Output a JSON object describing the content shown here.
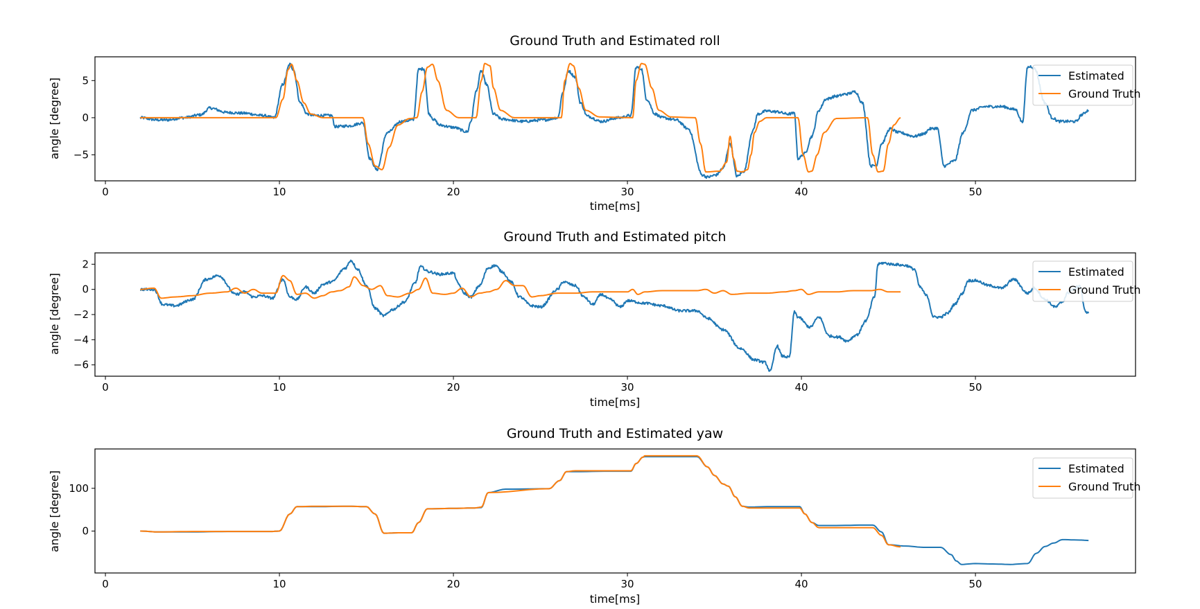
{
  "colors": {
    "estimated": "#1f77b4",
    "ground_truth": "#ff7f0e"
  },
  "chart_data": [
    {
      "type": "line",
      "title": "Ground Truth and Estimated roll",
      "xlabel": "time[ms]",
      "ylabel": "angle [degree]",
      "xlim": [
        -0.6,
        59.2
      ],
      "ylim": [
        -8.5,
        8.2
      ],
      "xticks": [
        0,
        10,
        20,
        30,
        40,
        50
      ],
      "yticks": [
        -5,
        0,
        5
      ],
      "legend": "top-right",
      "series": [
        {
          "name": "Estimated",
          "noise": 0.18,
          "x": [
            2.0,
            3.0,
            3.5,
            4.5,
            5.5,
            6.0,
            7.0,
            8.0,
            9.0,
            9.7,
            10.2,
            10.6,
            10.8,
            11.2,
            11.6,
            12.0,
            13.0,
            13.2,
            14.0,
            14.8,
            15.2,
            15.6,
            16.2,
            17.0,
            17.7,
            18.0,
            18.3,
            18.6,
            18.9,
            19.2,
            20.0,
            20.8,
            21.0,
            21.3,
            21.6,
            21.9,
            22.3,
            22.8,
            24.0,
            25.2,
            26.0,
            26.3,
            26.6,
            27.0,
            27.3,
            27.7,
            28.5,
            29.5,
            30.2,
            30.5,
            30.8,
            31.1,
            31.6,
            32.0,
            32.8,
            33.5,
            34.3,
            34.6,
            35.1,
            35.5,
            35.9,
            36.3,
            36.7,
            37.2,
            37.5,
            38.0,
            38.6,
            39.2,
            39.6,
            39.8,
            40.2,
            40.6,
            41.0,
            41.4,
            42.0,
            42.6,
            43.1,
            43.5,
            44.0,
            44.3,
            44.6,
            45.1,
            45.6,
            46.5,
            47.0,
            47.4,
            47.8,
            48.2,
            48.8,
            49.3,
            49.8,
            50.6,
            51.5,
            52.3,
            52.7,
            53.0,
            53.2,
            53.4,
            54.0,
            54.4,
            54.8,
            55.3,
            55.8,
            56.1,
            56.5
          ],
          "y": [
            0.0,
            -0.3,
            -0.3,
            0.0,
            0.4,
            1.3,
            0.7,
            0.6,
            0.3,
            0.0,
            4.5,
            7.2,
            6.5,
            2.0,
            0.5,
            0.3,
            0.3,
            -1.2,
            -1.1,
            -0.7,
            -5.5,
            -7.0,
            -2.0,
            -0.5,
            -0.3,
            6.5,
            6.6,
            0.5,
            -0.3,
            -1.0,
            -1.3,
            -1.9,
            -0.5,
            3.5,
            6.3,
            4.5,
            0.5,
            -0.2,
            -0.5,
            -0.3,
            0.0,
            3.5,
            6.3,
            5.5,
            2.0,
            0.2,
            -0.5,
            0.0,
            0.3,
            6.8,
            6.6,
            2.5,
            0.5,
            0.0,
            -0.3,
            -1.5,
            -7.7,
            -8.0,
            -7.7,
            -6.8,
            -3.5,
            -7.9,
            -7.2,
            -1.8,
            0.5,
            0.9,
            0.8,
            0.5,
            0.6,
            -5.5,
            -4.8,
            -2.5,
            1.0,
            2.5,
            2.9,
            3.2,
            3.5,
            2.0,
            -6.5,
            -6.4,
            -3.5,
            -1.5,
            -2.0,
            -2.5,
            -2.2,
            -1.5,
            -1.4,
            -6.5,
            -5.8,
            -2.0,
            1.0,
            1.5,
            1.5,
            1.1,
            -0.6,
            6.8,
            6.9,
            6.6,
            2.0,
            0.0,
            -0.5,
            -0.5,
            -0.5,
            0.4,
            1.0
          ]
        },
        {
          "name": "Ground Truth",
          "noise": 0,
          "x": [
            2.0,
            5.0,
            9.8,
            10.2,
            10.5,
            10.7,
            11.0,
            11.4,
            11.8,
            12.5,
            14.8,
            15.1,
            15.5,
            15.9,
            16.3,
            16.8,
            17.5,
            17.9,
            18.2,
            18.5,
            18.8,
            19.1,
            19.6,
            20.3,
            21.3,
            21.6,
            21.8,
            22.1,
            22.3,
            22.7,
            23.5,
            26.2,
            26.4,
            26.7,
            26.9,
            27.2,
            27.6,
            28.4,
            30.3,
            30.5,
            30.8,
            31.0,
            31.4,
            31.8,
            32.5,
            33.9,
            34.2,
            34.5,
            35.3,
            35.7,
            35.9,
            36.1,
            36.3,
            36.6,
            36.9,
            37.1,
            37.3,
            37.6,
            38.0,
            38.8,
            39.8,
            40.1,
            40.4,
            40.6,
            40.9,
            41.3,
            42.0,
            43.8,
            44.1,
            44.4,
            44.7,
            45.0,
            45.3,
            45.7
          ],
          "y": [
            0.0,
            0.0,
            0.0,
            2.5,
            6.5,
            7.2,
            5.0,
            2.0,
            0.5,
            0.0,
            0.0,
            -3.5,
            -6.5,
            -7.0,
            -4.0,
            -1.0,
            -0.1,
            0.0,
            3.5,
            6.8,
            7.2,
            5.0,
            1.0,
            0.0,
            0.0,
            5.0,
            7.3,
            7.0,
            4.0,
            1.0,
            0.0,
            0.0,
            5.0,
            7.3,
            7.0,
            4.0,
            1.0,
            0.1,
            0.0,
            5.0,
            7.3,
            7.2,
            4.0,
            1.0,
            0.1,
            0.0,
            -3.5,
            -7.3,
            -7.2,
            -6.0,
            -2.5,
            -5.5,
            -7.2,
            -7.3,
            -7.0,
            -5.0,
            -2.0,
            -0.5,
            0.0,
            0.0,
            0.0,
            -5.0,
            -7.3,
            -7.2,
            -5.0,
            -2.0,
            -0.1,
            0.0,
            -5.0,
            -7.3,
            -7.2,
            -3.5,
            -1.0,
            0.0
          ]
        }
      ]
    },
    {
      "type": "line",
      "title": "Ground Truth and Estimated pitch",
      "xlabel": "time[ms]",
      "ylabel": "angle [degree]",
      "xlim": [
        -0.6,
        59.2
      ],
      "ylim": [
        -6.9,
        2.9
      ],
      "xticks": [
        0,
        10,
        20,
        30,
        40,
        50
      ],
      "yticks": [
        -6,
        -4,
        -2,
        0,
        2
      ],
      "legend": "top-right",
      "series": [
        {
          "name": "Estimated",
          "noise": 0.1,
          "x": [
            2.0,
            2.8,
            3.3,
            4.0,
            5.0,
            5.8,
            6.5,
            7.5,
            8.0,
            8.5,
            9.0,
            9.6,
            10.2,
            10.6,
            11.0,
            11.5,
            12.0,
            12.5,
            13.0,
            13.8,
            14.1,
            14.5,
            15.0,
            15.5,
            16.0,
            16.5,
            17.2,
            17.8,
            18.1,
            18.6,
            19.2,
            20.0,
            20.3,
            20.6,
            21.0,
            21.5,
            22.0,
            22.4,
            22.8,
            23.3,
            23.8,
            24.5,
            25.0,
            26.0,
            26.3,
            27.0,
            27.5,
            28.0,
            28.5,
            29.0,
            29.6,
            30.0,
            31.0,
            32.0,
            33.0,
            34.0,
            34.6,
            35.5,
            36.5,
            37.3,
            37.9,
            38.2,
            38.6,
            38.9,
            39.3,
            39.6,
            39.8,
            40.5,
            41.0,
            41.6,
            42.2,
            42.6,
            43.2,
            43.7,
            44.2,
            44.4,
            44.7,
            45.2,
            46.0,
            46.5,
            46.8,
            47.2,
            47.6,
            48.0,
            48.4,
            48.8,
            49.2,
            49.6,
            50.0,
            50.8,
            51.5,
            52.2,
            53.0,
            53.4,
            54.0,
            54.6,
            55.0,
            55.3,
            55.6,
            56.0,
            56.3,
            56.5
          ],
          "y": [
            0.0,
            0.0,
            -1.2,
            -1.3,
            -0.8,
            0.8,
            1.1,
            -0.4,
            -0.2,
            -0.6,
            -0.5,
            -0.7,
            0.8,
            -0.6,
            -0.8,
            0.2,
            -0.3,
            0.4,
            0.6,
            1.7,
            2.3,
            1.6,
            0.3,
            -1.5,
            -2.1,
            -1.6,
            -1.0,
            0.5,
            1.8,
            1.4,
            1.2,
            1.3,
            0.4,
            -0.3,
            -0.6,
            0.3,
            1.7,
            1.9,
            1.4,
            0.6,
            -0.6,
            -1.3,
            -1.4,
            0.0,
            0.6,
            0.3,
            -0.6,
            -1.2,
            -0.4,
            -0.8,
            -1.4,
            -0.9,
            -1.1,
            -1.3,
            -1.7,
            -1.7,
            -2.3,
            -3.2,
            -4.7,
            -5.6,
            -5.8,
            -6.5,
            -4.5,
            -5.3,
            -5.4,
            -1.8,
            -2.2,
            -3.0,
            -2.2,
            -3.7,
            -3.8,
            -4.1,
            -3.6,
            -2.5,
            -0.6,
            2.0,
            2.1,
            2.0,
            1.9,
            1.6,
            0.2,
            -0.5,
            -2.2,
            -2.2,
            -1.9,
            -1.2,
            -0.4,
            0.7,
            0.7,
            0.3,
            0.1,
            0.8,
            -0.3,
            0.1,
            -0.8,
            -1.4,
            -1.0,
            -0.3,
            0.0,
            0.3,
            -1.7,
            -1.9
          ]
        },
        {
          "name": "Ground Truth",
          "noise": 0,
          "x": [
            2.0,
            2.8,
            3.2,
            4.0,
            5.0,
            6.0,
            7.0,
            7.5,
            8.0,
            8.5,
            9.0,
            9.8,
            10.2,
            10.6,
            11.0,
            11.5,
            12.0,
            12.5,
            13.0,
            13.5,
            14.0,
            14.3,
            14.8,
            15.3,
            15.8,
            16.2,
            16.8,
            17.5,
            18.0,
            18.4,
            18.8,
            19.5,
            20.0,
            20.5,
            21.0,
            21.5,
            22.0,
            22.5,
            23.0,
            23.5,
            24.0,
            24.5,
            25.0,
            26.0,
            27.0,
            28.0,
            29.0,
            30.0,
            30.3,
            30.6,
            31.0,
            32.0,
            33.0,
            34.0,
            34.5,
            35.0,
            35.5,
            36.0,
            37.0,
            38.0,
            39.0,
            39.6,
            40.0,
            40.4,
            41.0,
            42.0,
            43.0,
            44.0,
            44.5,
            45.0,
            45.7
          ],
          "y": [
            0.0,
            0.1,
            -0.7,
            -0.6,
            -0.5,
            -0.3,
            -0.2,
            0.1,
            -0.3,
            0.0,
            -0.3,
            -0.3,
            1.1,
            0.7,
            -0.4,
            -0.3,
            -0.7,
            -0.5,
            -0.2,
            -0.1,
            0.2,
            1.0,
            0.3,
            0.0,
            0.3,
            -0.5,
            -0.6,
            -0.3,
            0.0,
            0.9,
            -0.3,
            -0.4,
            -0.3,
            0.1,
            -0.6,
            -0.3,
            -0.2,
            0.0,
            0.7,
            0.3,
            0.3,
            -0.6,
            -0.5,
            -0.3,
            -0.3,
            -0.2,
            -0.2,
            -0.2,
            0.0,
            -0.4,
            -0.2,
            -0.1,
            -0.1,
            -0.1,
            0.0,
            -0.3,
            -0.1,
            -0.4,
            -0.3,
            -0.3,
            -0.2,
            -0.1,
            0.0,
            -0.4,
            -0.2,
            -0.2,
            -0.1,
            -0.1,
            0.0,
            -0.2,
            -0.2
          ]
        }
      ]
    },
    {
      "type": "line",
      "title": "Ground Truth and Estimated yaw",
      "xlabel": "time[ms]",
      "ylabel": "angle [degree]",
      "xlim": [
        -0.6,
        59.2
      ],
      "ylim": [
        -98,
        192
      ],
      "xticks": [
        0,
        10,
        20,
        30,
        40,
        50
      ],
      "yticks": [
        0,
        100
      ],
      "legend": "top-right",
      "series": [
        {
          "name": "Estimated",
          "noise": 0,
          "x": [
            2.0,
            3.0,
            5.0,
            7.0,
            9.5,
            10.0,
            10.6,
            11.0,
            12.0,
            14.0,
            15.0,
            15.5,
            16.0,
            17.0,
            17.6,
            18.0,
            18.5,
            20.0,
            21.2,
            21.6,
            22.0,
            23.0,
            25.5,
            26.1,
            26.5,
            27.0,
            29.0,
            30.2,
            30.5,
            30.9,
            31.0,
            32.0,
            33.6,
            34.0,
            34.6,
            35.0,
            35.5,
            35.8,
            36.2,
            36.6,
            37.0,
            38.0,
            39.0,
            39.9,
            40.2,
            40.6,
            41.0,
            42.0,
            43.6,
            44.1,
            44.6,
            45.0,
            46.0,
            47.0,
            47.6,
            48.0,
            48.6,
            48.9,
            49.2,
            50.0,
            51.0,
            52.0,
            53.0,
            53.5,
            54.0,
            54.5,
            55.0,
            56.0,
            56.5
          ],
          "y": [
            0,
            -2,
            -2,
            -1,
            -1,
            0,
            40,
            57,
            57,
            58,
            57,
            40,
            -5,
            -4,
            -4,
            20,
            52,
            53,
            54,
            55,
            90,
            98,
            99,
            118,
            139,
            139,
            140,
            140,
            158,
            173,
            174,
            174,
            174,
            174,
            150,
            130,
            110,
            105,
            80,
            58,
            56,
            57,
            57,
            57,
            40,
            20,
            13,
            13,
            14,
            14,
            -2,
            -32,
            -35,
            -38,
            -38,
            -38,
            -55,
            -70,
            -78,
            -76,
            -77,
            -78,
            -76,
            -52,
            -36,
            -28,
            -20,
            -21,
            -22
          ]
        },
        {
          "name": "Ground Truth",
          "noise": 0,
          "x": [
            2.0,
            3.0,
            5.0,
            9.5,
            10.0,
            10.6,
            11.0,
            12.0,
            14.0,
            15.0,
            15.5,
            16.0,
            17.0,
            17.6,
            18.0,
            18.5,
            20.0,
            21.2,
            21.6,
            22.0,
            25.5,
            26.1,
            26.5,
            27.0,
            30.2,
            30.5,
            30.9,
            31.0,
            33.6,
            34.0,
            34.6,
            35.0,
            35.5,
            35.8,
            36.2,
            36.6,
            37.0,
            39.9,
            40.2,
            40.6,
            41.0,
            42.0,
            43.6,
            44.1,
            44.6,
            45.0,
            45.7
          ],
          "y": [
            0,
            -2,
            -1,
            -1,
            0,
            40,
            57,
            58,
            58,
            57,
            40,
            -5,
            -4,
            -4,
            20,
            52,
            53,
            54,
            56,
            90,
            99,
            118,
            139,
            141,
            141,
            158,
            173,
            176,
            176,
            176,
            150,
            130,
            110,
            105,
            80,
            58,
            54,
            54,
            40,
            20,
            8,
            8,
            8,
            8,
            -10,
            -32,
            -37
          ]
        }
      ]
    }
  ]
}
